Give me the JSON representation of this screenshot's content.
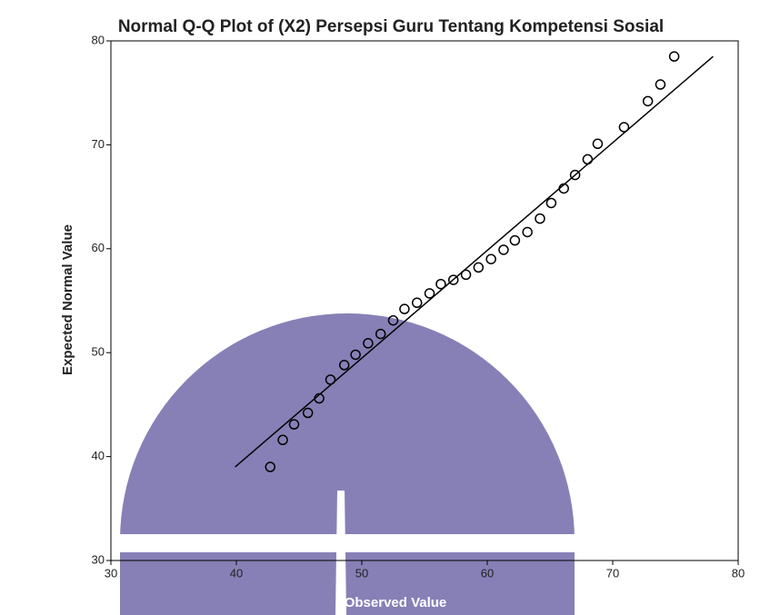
{
  "chart_data": {
    "type": "scatter",
    "title": "Normal Q-Q Plot of (X2) Persepsi Guru Tentang Kompetensi Sosial",
    "x_label": "Observed Value",
    "y_label": "Expected Normal Value",
    "x": [
      42.7,
      43.7,
      44.6,
      45.7,
      46.6,
      47.5,
      48.6,
      49.5,
      50.5,
      51.5,
      52.5,
      53.4,
      54.4,
      55.4,
      56.3,
      57.3,
      58.3,
      59.3,
      60.3,
      61.3,
      62.2,
      63.2,
      64.2,
      65.1,
      66.1,
      67.0,
      68.0,
      68.8,
      70.9,
      72.8,
      73.8,
      74.9
    ],
    "values": [
      39.0,
      41.6,
      43.1,
      44.2,
      45.6,
      47.4,
      48.8,
      49.8,
      50.9,
      51.8,
      53.1,
      54.2,
      54.8,
      55.7,
      56.6,
      57.0,
      57.5,
      58.2,
      59.0,
      59.9,
      60.8,
      61.6,
      62.9,
      64.4,
      65.8,
      67.1,
      68.6,
      70.1,
      71.7,
      74.2,
      75.8,
      78.5
    ],
    "reference_line": {
      "x": [
        39.9,
        78.0
      ],
      "y": [
        39.0,
        78.5
      ]
    },
    "color": "#000000",
    "xlim": [
      30,
      80
    ],
    "xticks": [
      30,
      40,
      50,
      60,
      70,
      80
    ],
    "ylim": [
      30,
      80
    ],
    "yticks": [
      30,
      40,
      50,
      60,
      70,
      80
    ]
  }
}
